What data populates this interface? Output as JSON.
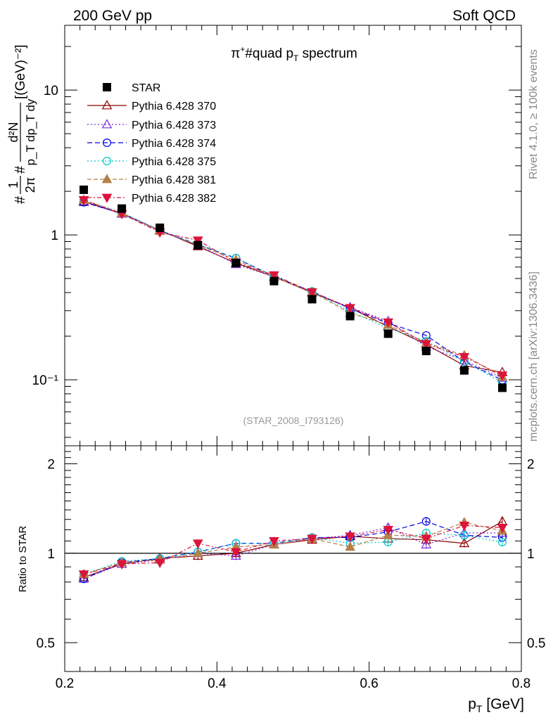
{
  "header": {
    "left": "200 GeV pp",
    "right": "Soft QCD",
    "side_top": "Rivet 4.1.0, ≥ 100k events",
    "side_bottom": "mcplots.cern.ch [arXiv:1306.3436]"
  },
  "chart_data": {
    "type": "scatter",
    "title": "π⁺#quad p_T spectrum",
    "title_main": "π",
    "title_sup": "+",
    "title_mid": "#quad p",
    "title_sub": "T",
    "title_end": " spectrum",
    "analysis_label": "(STAR_2008_I793126)",
    "xlabel": "p_T [GeV]",
    "xlabel_main": "p",
    "xlabel_sub": "T",
    "xlabel_unit": " [GeV]",
    "ylabel": "#frac{1}{2π} #frac{d²N}{p_T dp_T dy} [(GeV)⁻²]",
    "ylabel_parts": {
      "hash1": "#",
      "frac1_num": "1",
      "frac1_den": "2π",
      "hash2": "#",
      "frac2_num": "d²N",
      "frac2_den": "p_T dp_T dy",
      "unit": "[(GeV)⁻²]"
    },
    "xlim": [
      0.2,
      0.8
    ],
    "ylim": [
      0.035,
      28
    ],
    "yscale": "log",
    "x_ticks": [
      "0.2",
      "0.4",
      "0.6",
      "0.8"
    ],
    "y_ticks": [
      "10⁻¹",
      "1",
      "10"
    ],
    "ratio_panel": {
      "ylabel": "Ratio to STAR",
      "ylim": [
        0.4,
        2.3
      ],
      "yscale": "log",
      "y_ticks": [
        "0.5",
        "1",
        "2"
      ]
    },
    "x": [
      0.225,
      0.275,
      0.325,
      0.375,
      0.425,
      0.475,
      0.525,
      0.575,
      0.625,
      0.675,
      0.725,
      0.775
    ],
    "reference": {
      "name": "STAR",
      "color": "#000000",
      "values": [
        2.05,
        1.52,
        1.12,
        0.85,
        0.64,
        0.48,
        0.36,
        0.275,
        0.208,
        0.158,
        0.116,
        0.088
      ]
    },
    "series": [
      {
        "name": "Pythia 6.428 370",
        "color": "#8b0000",
        "marker": "triangle-open",
        "dash": "",
        "ratios": [
          0.83,
          0.92,
          0.96,
          0.98,
          1.0,
          1.07,
          1.11,
          1.14,
          1.12,
          1.11,
          1.08,
          1.28
        ]
      },
      {
        "name": "Pythia 6.428 373",
        "color": "#7a2be2",
        "marker": "triangle-open",
        "dash": "2,3",
        "ratios": [
          0.82,
          0.92,
          0.95,
          1.0,
          0.98,
          1.07,
          1.12,
          1.15,
          1.22,
          1.07,
          1.17,
          1.17
        ]
      },
      {
        "name": "Pythia 6.428 374",
        "color": "#0000e0",
        "marker": "circle-open",
        "dash": "7,4",
        "ratios": [
          0.82,
          0.93,
          0.96,
          1.01,
          1.08,
          1.08,
          1.13,
          1.13,
          1.18,
          1.28,
          1.15,
          1.13
        ]
      },
      {
        "name": "Pythia 6.428 375",
        "color": "#00c8c8",
        "marker": "circle-open",
        "dash": "2,3",
        "ratios": [
          0.85,
          0.94,
          0.96,
          1.01,
          1.08,
          1.08,
          1.13,
          1.08,
          1.09,
          1.17,
          1.15,
          1.09
        ]
      },
      {
        "name": "Pythia 6.428 381",
        "color": "#b5804a",
        "marker": "triangle-filled",
        "dash": "6,3",
        "ratios": [
          0.85,
          0.93,
          0.95,
          1.0,
          1.05,
          1.07,
          1.12,
          1.05,
          1.15,
          1.14,
          1.27,
          1.19
        ]
      },
      {
        "name": "Pythia 6.428 382",
        "color": "#dc143c",
        "marker": "triangle-down-filled",
        "dash": "6,3,2,3",
        "ratios": [
          0.85,
          0.92,
          0.93,
          1.08,
          1.01,
          1.1,
          1.12,
          1.14,
          1.2,
          1.12,
          1.24,
          1.22
        ]
      }
    ]
  }
}
